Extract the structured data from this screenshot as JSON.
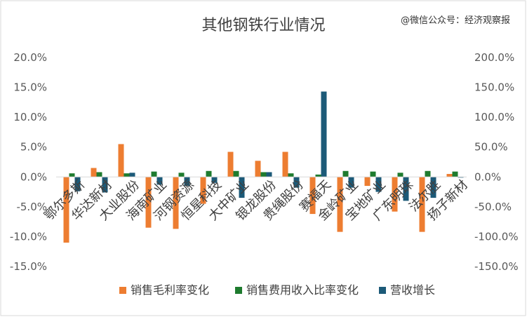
{
  "watermark": "@微信公众号：经济观察报",
  "chart_data": {
    "type": "bar",
    "title": "其他钢铁行业情况",
    "categories": [
      "鄂尔多斯",
      "华达新材",
      "大业股份",
      "海南矿业",
      "河钢资源",
      "恒星科技",
      "大中矿业",
      "银龙股份",
      "贵绳股份",
      "赛福天",
      "金岭矿业",
      "宝地矿业",
      "广东明珠",
      "法尔胜",
      "扬子新材"
    ],
    "series": [
      {
        "name": "销售毛利率变化",
        "axis": "left",
        "color": "#ED7D31",
        "values": [
          -11.0,
          1.5,
          5.5,
          -8.5,
          -8.7,
          -4.5,
          4.2,
          2.7,
          4.2,
          -6.2,
          -9.2,
          -1.5,
          -5.8,
          -9.2,
          0.5
        ]
      },
      {
        "name": "销售费用收入比率变化",
        "axis": "left",
        "color": "#1E7B2E",
        "values": [
          0.6,
          0.8,
          0.6,
          0.9,
          0.7,
          1.0,
          1.0,
          0.8,
          0.6,
          0.4,
          1.0,
          0.9,
          0.7,
          1.0,
          0.9
        ]
      },
      {
        "name": "营收增长",
        "axis": "right",
        "color": "#1C5A78",
        "values": [
          -24,
          -26,
          7,
          -13,
          -15,
          -10,
          -35,
          8,
          -18,
          143,
          -18,
          -25,
          -40,
          -35,
          0
        ]
      }
    ],
    "left_axis": {
      "min": -15,
      "max": 20,
      "step": 5,
      "tick_labels": [
        "-15.0%",
        "-10.0%",
        "-5.0%",
        "0.0%",
        "5.0%",
        "10.0%",
        "15.0%",
        "20.0%"
      ]
    },
    "right_axis": {
      "min": -150,
      "max": 200,
      "step": 50,
      "tick_labels": [
        "-150.0%",
        "-100.0%",
        "-50.0%",
        "0.0%",
        "50.0%",
        "100.0%",
        "150.0%",
        "200.0%"
      ]
    },
    "legend_position": "bottom",
    "grid": false
  }
}
